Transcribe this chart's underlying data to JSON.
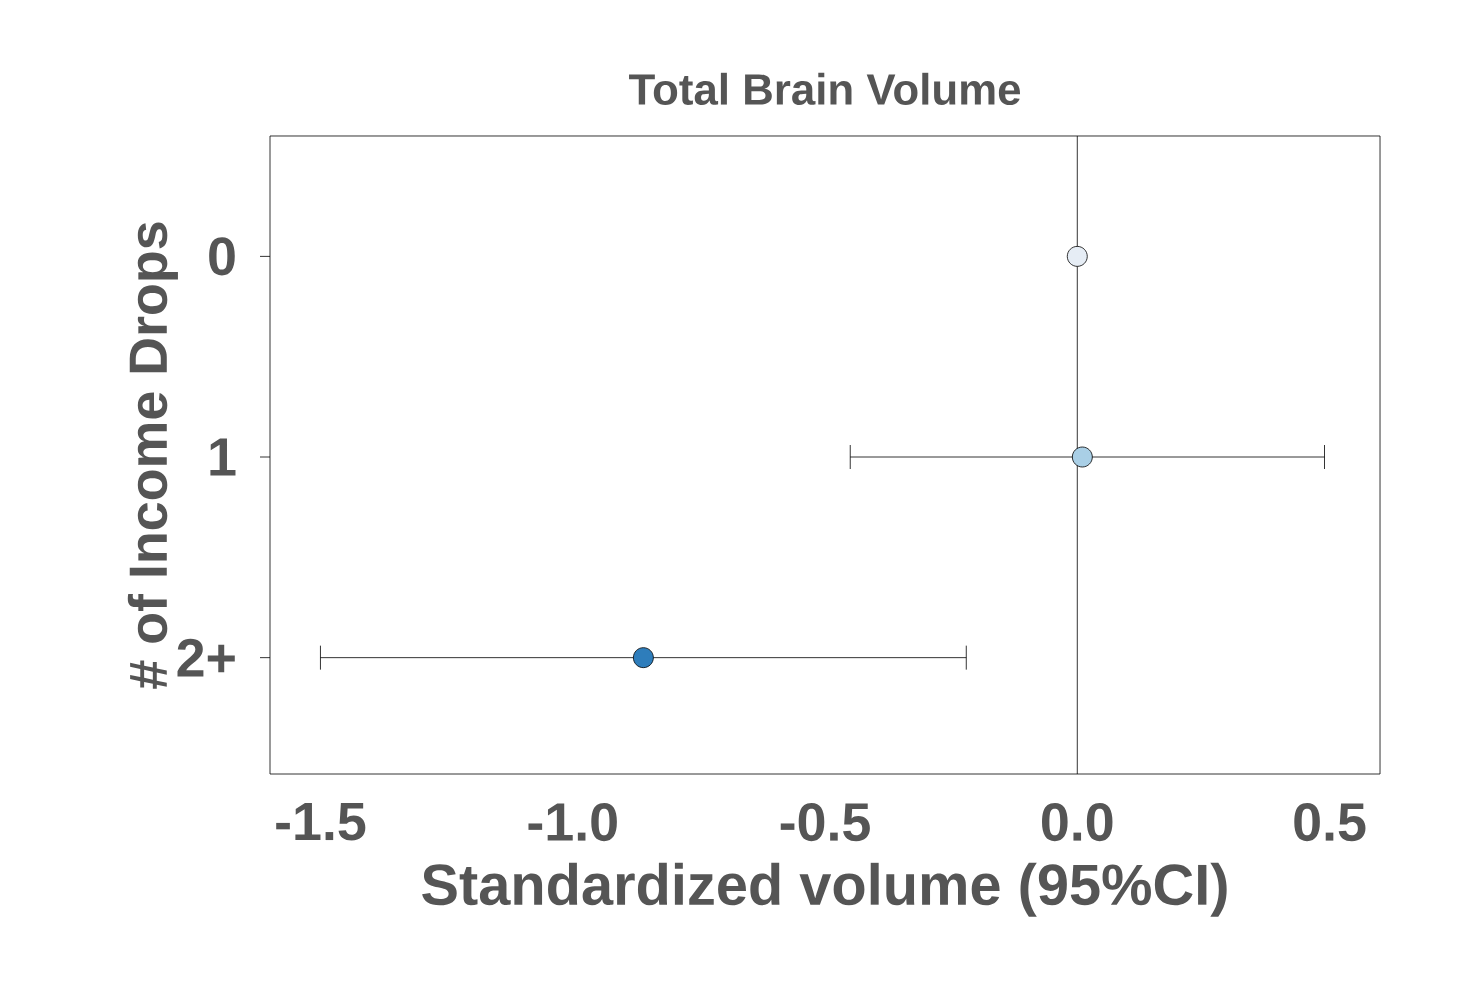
{
  "chart_data": {
    "type": "scatter",
    "orientation": "horizontal",
    "title": "Total Brain Volume",
    "xlabel": "Standardized volume (95%CI)",
    "ylabel": "# of Income Drops",
    "categories": [
      "0",
      "1",
      "2+"
    ],
    "values": [
      0.0,
      0.01,
      -0.86
    ],
    "errors": [
      null,
      [
        -0.45,
        0.49
      ],
      [
        -1.5,
        -0.22
      ]
    ],
    "colors": [
      "#e6edf5",
      "#a9cfe6",
      "#2e7dbb"
    ],
    "xlim": [
      -1.6,
      0.6
    ],
    "xticks": [
      {
        "value": -1.5,
        "label": "-1.5"
      },
      {
        "value": -1.0,
        "label": "-1.0"
      },
      {
        "value": -0.5,
        "label": "-0.5"
      },
      {
        "value": 0.0,
        "label": "0.0"
      },
      {
        "value": 0.5,
        "label": "0.5"
      }
    ],
    "ref_lines": [
      {
        "axis": "x",
        "value": 0,
        "color": "#000000"
      }
    ],
    "marker": "circle",
    "grid": false
  }
}
